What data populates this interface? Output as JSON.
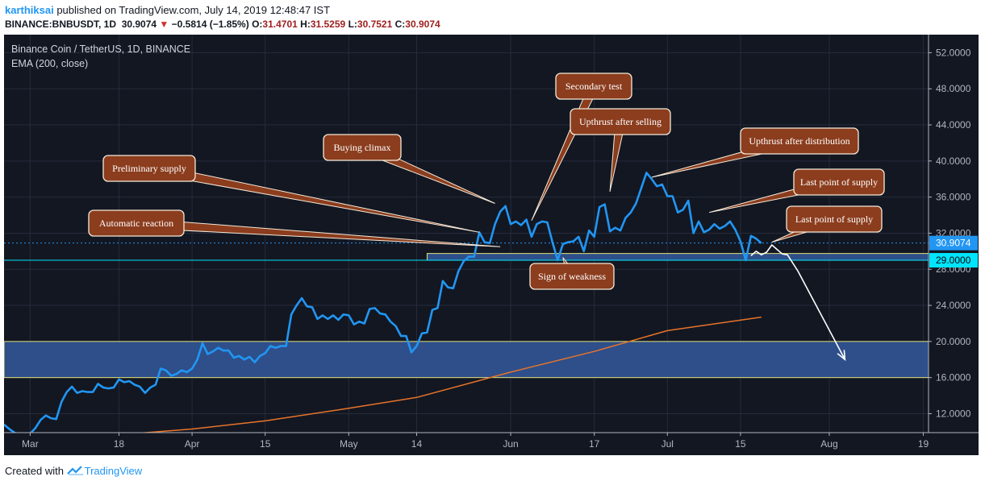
{
  "header": {
    "user": "karthiksai",
    "published": " published on TradingView.com, July 14, 2019 12:48:47 IST",
    "symbol": "BINANCE:BNBUSDT, 1D",
    "last": "30.9074",
    "change": "−0.5814 (−1.85%)",
    "o_label": "O:",
    "o_value": "31.4701",
    "h_label": "H:",
    "h_value": "31.5259",
    "l_label": "L:",
    "l_value": "30.7521",
    "c_label": "C:",
    "c_value": "30.9074"
  },
  "legend": {
    "title": "Binance Coin / TetherUS, 1D, BINANCE",
    "indicator": "EMA (200, close)"
  },
  "footer": {
    "created": "Created with",
    "brand": "TradingView"
  },
  "colors": {
    "background": "#131722",
    "price": "#2196f3",
    "ema": "#e8742a",
    "zone_fill": "#2f5290",
    "zone_border": "#e5e37a",
    "annotation_fill": "#8b3d1e",
    "annotation_border": "#f4ead8",
    "last_price_label": "#2196f3",
    "level_label": "#00e5ff"
  },
  "chart_data": {
    "type": "line",
    "title": "Binance Coin / TetherUS, 1D, BINANCE",
    "y_axis": {
      "ylim": [
        9.9,
        54.0
      ],
      "ticks": [
        12,
        16,
        20,
        24,
        28,
        32,
        36,
        40,
        44,
        48,
        52
      ],
      "tick_labels": [
        "12.0000",
        "16.0000",
        "20.0000",
        "24.0000",
        "28.0000",
        "32.0000",
        "36.0000",
        "40.0000",
        "44.0000",
        "48.0000",
        "52.0000"
      ]
    },
    "x_axis": {
      "xlim": [
        "2019-02-24",
        "2019-08-20"
      ],
      "ticks": [
        {
          "date": "2019-03-01",
          "label": "Mar"
        },
        {
          "date": "2019-03-18",
          "label": "18"
        },
        {
          "date": "2019-04-01",
          "label": "Apr"
        },
        {
          "date": "2019-04-15",
          "label": "15"
        },
        {
          "date": "2019-05-01",
          "label": "May"
        },
        {
          "date": "2019-05-14",
          "label": "14"
        },
        {
          "date": "2019-06-01",
          "label": "Jun"
        },
        {
          "date": "2019-06-17",
          "label": "17"
        },
        {
          "date": "2019-07-01",
          "label": "Jul"
        },
        {
          "date": "2019-07-15",
          "label": "15"
        },
        {
          "date": "2019-08-01",
          "label": "Aug"
        },
        {
          "date": "2019-08-19",
          "label": "19"
        }
      ]
    },
    "series": [
      {
        "name": "Binance Coin / TetherUS",
        "role": "price",
        "points": [
          [
            "2019-02-24",
            10.8
          ],
          [
            "2019-02-25",
            10.3
          ],
          [
            "2019-02-26",
            9.9
          ],
          [
            "2019-02-27",
            9.7
          ],
          [
            "2019-02-28",
            9.6
          ],
          [
            "2019-03-01",
            9.8
          ],
          [
            "2019-03-02",
            10.4
          ],
          [
            "2019-03-03",
            11.3
          ],
          [
            "2019-03-04",
            11.8
          ],
          [
            "2019-03-05",
            11.5
          ],
          [
            "2019-03-06",
            11.4
          ],
          [
            "2019-03-07",
            13.3
          ],
          [
            "2019-03-08",
            14.4
          ],
          [
            "2019-03-09",
            15.0
          ],
          [
            "2019-03-10",
            14.3
          ],
          [
            "2019-03-11",
            14.5
          ],
          [
            "2019-03-12",
            14.4
          ],
          [
            "2019-03-13",
            14.4
          ],
          [
            "2019-03-14",
            15.3
          ],
          [
            "2019-03-15",
            14.9
          ],
          [
            "2019-03-16",
            14.8
          ],
          [
            "2019-03-17",
            14.9
          ],
          [
            "2019-03-18",
            15.8
          ],
          [
            "2019-03-19",
            15.5
          ],
          [
            "2019-03-20",
            15.6
          ],
          [
            "2019-03-21",
            15.2
          ],
          [
            "2019-03-22",
            15.0
          ],
          [
            "2019-03-23",
            14.3
          ],
          [
            "2019-03-24",
            14.9
          ],
          [
            "2019-03-25",
            15.2
          ],
          [
            "2019-03-26",
            17.0
          ],
          [
            "2019-03-27",
            16.8
          ],
          [
            "2019-03-28",
            16.2
          ],
          [
            "2019-03-29",
            16.4
          ],
          [
            "2019-03-30",
            16.8
          ],
          [
            "2019-03-31",
            16.6
          ],
          [
            "2019-04-01",
            17.0
          ],
          [
            "2019-04-02",
            18.0
          ],
          [
            "2019-04-03",
            19.8
          ],
          [
            "2019-04-04",
            18.6
          ],
          [
            "2019-04-05",
            18.9
          ],
          [
            "2019-04-06",
            19.3
          ],
          [
            "2019-04-07",
            19.0
          ],
          [
            "2019-04-08",
            19.0
          ],
          [
            "2019-04-09",
            18.2
          ],
          [
            "2019-04-10",
            18.4
          ],
          [
            "2019-04-11",
            18.0
          ],
          [
            "2019-04-12",
            18.3
          ],
          [
            "2019-04-13",
            17.7
          ],
          [
            "2019-04-14",
            18.4
          ],
          [
            "2019-04-15",
            18.7
          ],
          [
            "2019-04-16",
            19.5
          ],
          [
            "2019-04-17",
            19.3
          ],
          [
            "2019-04-18",
            19.5
          ],
          [
            "2019-04-19",
            19.5
          ],
          [
            "2019-04-20",
            23.0
          ],
          [
            "2019-04-21",
            24.0
          ],
          [
            "2019-04-22",
            24.8
          ],
          [
            "2019-04-23",
            23.9
          ],
          [
            "2019-04-24",
            23.8
          ],
          [
            "2019-04-25",
            22.5
          ],
          [
            "2019-04-26",
            22.9
          ],
          [
            "2019-04-27",
            22.5
          ],
          [
            "2019-04-28",
            22.9
          ],
          [
            "2019-04-29",
            22.4
          ],
          [
            "2019-04-30",
            23.0
          ],
          [
            "2019-05-01",
            22.9
          ],
          [
            "2019-05-02",
            21.9
          ],
          [
            "2019-05-03",
            22.2
          ],
          [
            "2019-05-04",
            22.0
          ],
          [
            "2019-05-05",
            23.6
          ],
          [
            "2019-05-06",
            23.7
          ],
          [
            "2019-05-07",
            23.1
          ],
          [
            "2019-05-08",
            23.0
          ],
          [
            "2019-05-09",
            22.2
          ],
          [
            "2019-05-10",
            21.7
          ],
          [
            "2019-05-11",
            20.6
          ],
          [
            "2019-05-12",
            20.6
          ],
          [
            "2019-05-13",
            18.8
          ],
          [
            "2019-05-14",
            19.5
          ],
          [
            "2019-05-15",
            20.9
          ],
          [
            "2019-05-16",
            21.0
          ],
          [
            "2019-05-17",
            23.5
          ],
          [
            "2019-05-18",
            23.7
          ],
          [
            "2019-05-19",
            26.7
          ],
          [
            "2019-05-20",
            26.0
          ],
          [
            "2019-05-21",
            25.9
          ],
          [
            "2019-05-22",
            27.8
          ],
          [
            "2019-05-23",
            28.9
          ],
          [
            "2019-05-24",
            29.4
          ],
          [
            "2019-05-25",
            29.4
          ],
          [
            "2019-05-26",
            32.1
          ],
          [
            "2019-05-27",
            31.0
          ],
          [
            "2019-05-28",
            30.9
          ],
          [
            "2019-05-29",
            33.0
          ],
          [
            "2019-05-30",
            34.4
          ],
          [
            "2019-05-31",
            35.0
          ],
          [
            "2019-06-01",
            33.0
          ],
          [
            "2019-06-02",
            33.3
          ],
          [
            "2019-06-03",
            32.9
          ],
          [
            "2019-06-04",
            33.5
          ],
          [
            "2019-06-05",
            31.6
          ],
          [
            "2019-06-06",
            33.0
          ],
          [
            "2019-06-07",
            33.3
          ],
          [
            "2019-06-08",
            33.2
          ],
          [
            "2019-06-09",
            31.0
          ],
          [
            "2019-06-10",
            29.0
          ],
          [
            "2019-06-11",
            30.8
          ],
          [
            "2019-06-12",
            31.0
          ],
          [
            "2019-06-13",
            31.1
          ],
          [
            "2019-06-14",
            31.6
          ],
          [
            "2019-06-15",
            30.0
          ],
          [
            "2019-06-16",
            32.3
          ],
          [
            "2019-06-17",
            31.6
          ],
          [
            "2019-06-18",
            34.9
          ],
          [
            "2019-06-19",
            35.2
          ],
          [
            "2019-06-20",
            32.2
          ],
          [
            "2019-06-21",
            32.6
          ],
          [
            "2019-06-22",
            32.3
          ],
          [
            "2019-06-23",
            33.7
          ],
          [
            "2019-06-24",
            34.3
          ],
          [
            "2019-06-25",
            35.3
          ],
          [
            "2019-06-26",
            37.0
          ],
          [
            "2019-06-27",
            38.7
          ],
          [
            "2019-06-28",
            38.0
          ],
          [
            "2019-06-29",
            37.2
          ],
          [
            "2019-06-30",
            37.4
          ],
          [
            "2019-07-01",
            36.1
          ],
          [
            "2019-07-02",
            36.1
          ],
          [
            "2019-07-03",
            34.3
          ],
          [
            "2019-07-04",
            34.6
          ],
          [
            "2019-07-05",
            35.6
          ],
          [
            "2019-07-06",
            32.0
          ],
          [
            "2019-07-07",
            33.3
          ],
          [
            "2019-07-08",
            32.1
          ],
          [
            "2019-07-09",
            32.4
          ],
          [
            "2019-07-10",
            33.0
          ],
          [
            "2019-07-11",
            32.5
          ],
          [
            "2019-07-12",
            32.8
          ],
          [
            "2019-07-13",
            33.3
          ],
          [
            "2019-07-14",
            32.4
          ],
          [
            "2019-07-15",
            31.1
          ],
          [
            "2019-07-16",
            29.0
          ],
          [
            "2019-07-17",
            31.7
          ],
          [
            "2019-07-18",
            31.4
          ],
          [
            "2019-07-19",
            30.9
          ]
        ]
      },
      {
        "name": "EMA (200, close)",
        "role": "ema",
        "points": [
          [
            "2019-03-21",
            9.8
          ],
          [
            "2019-04-01",
            10.3
          ],
          [
            "2019-04-15",
            11.2
          ],
          [
            "2019-05-01",
            12.6
          ],
          [
            "2019-05-14",
            13.8
          ],
          [
            "2019-06-01",
            16.6
          ],
          [
            "2019-06-17",
            18.9
          ],
          [
            "2019-07-01",
            21.2
          ],
          [
            "2019-07-19",
            22.7
          ]
        ]
      }
    ],
    "zones": [
      {
        "low": 16.0,
        "high": 20.0,
        "from": "2019-02-24",
        "to": "2019-08-20"
      },
      {
        "low": 29.0,
        "high": 29.75,
        "from": "2019-05-16",
        "to": "2019-08-20"
      }
    ],
    "levels": [
      {
        "value": 30.9074,
        "label": "30.9074",
        "role": "last"
      },
      {
        "value": 29.0,
        "label": "29.0000",
        "role": "level"
      }
    ],
    "projection": [
      [
        "2019-07-17",
        29.5
      ],
      [
        "2019-07-18",
        30.0
      ],
      [
        "2019-07-19",
        29.6
      ],
      [
        "2019-07-20",
        29.9
      ],
      [
        "2019-07-21",
        30.7
      ],
      [
        "2019-07-22",
        30.2
      ],
      [
        "2019-07-23",
        29.7
      ],
      [
        "2019-07-24",
        29.6
      ],
      [
        "2019-07-26",
        27.8
      ],
      [
        "2019-08-04",
        18.0
      ]
    ],
    "annotations": [
      {
        "label": "Automatic reaction",
        "tip": [
          "2019-05-30",
          30.5
        ]
      },
      {
        "label": "Preliminary supply",
        "tip": [
          "2019-05-26",
          32.1
        ]
      },
      {
        "label": "Buying climax",
        "tip": [
          "2019-05-29",
          35.3
        ]
      },
      {
        "label": "Secondary test",
        "tip": [
          "2019-06-05",
          33.4
        ]
      },
      {
        "label": "Upthrust after selling",
        "tip": [
          "2019-06-20",
          36.6
        ]
      },
      {
        "label": "Upthrust after distribution",
        "tip": [
          "2019-06-28",
          38.2
        ]
      },
      {
        "label": "Last point of supply",
        "tip": [
          "2019-07-09",
          34.3
        ]
      },
      {
        "label": "Last point of supply",
        "tip": [
          "2019-07-21",
          31.0
        ]
      },
      {
        "label": "Sign of weakness",
        "tip": [
          "2019-06-11",
          29.3
        ]
      }
    ],
    "legend_position": "top-left",
    "grid": true
  }
}
